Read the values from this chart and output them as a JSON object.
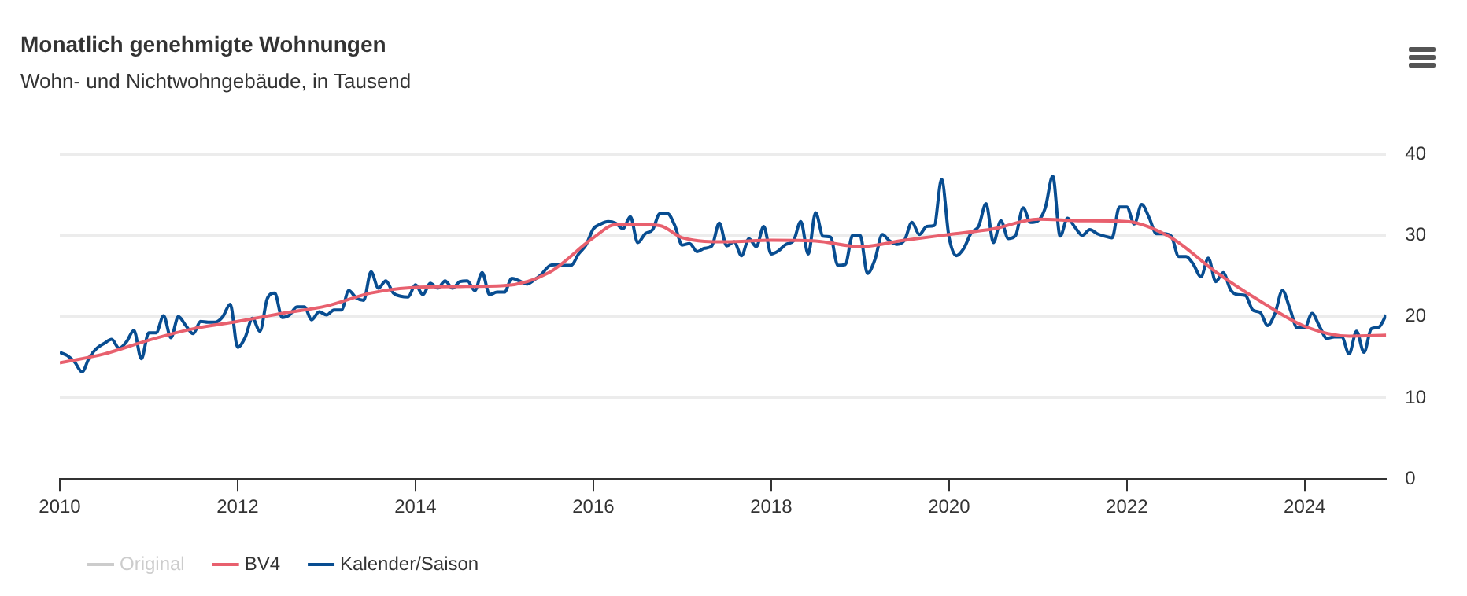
{
  "chart_data": {
    "type": "line",
    "title": "Monatlich genehmigte Wohnungen",
    "subtitle": "Wohn- und Nichtwohngebäude, in Tausend",
    "x": [
      "2010-01",
      "2010-02",
      "2010-03",
      "2010-04",
      "2010-05",
      "2010-06",
      "2010-07",
      "2010-08",
      "2010-09",
      "2010-10",
      "2010-11",
      "2010-12",
      "2011-01",
      "2011-02",
      "2011-03",
      "2011-04",
      "2011-05",
      "2011-06",
      "2011-07",
      "2011-08",
      "2011-09",
      "2011-10",
      "2011-11",
      "2011-12",
      "2012-01",
      "2012-02",
      "2012-03",
      "2012-04",
      "2012-05",
      "2012-06",
      "2012-07",
      "2012-08",
      "2012-09",
      "2012-10",
      "2012-11",
      "2012-12",
      "2013-01",
      "2013-02",
      "2013-03",
      "2013-04",
      "2013-05",
      "2013-06",
      "2013-07",
      "2013-08",
      "2013-09",
      "2013-10",
      "2013-11",
      "2013-12",
      "2014-01",
      "2014-02",
      "2014-03",
      "2014-04",
      "2014-05",
      "2014-06",
      "2014-07",
      "2014-08",
      "2014-09",
      "2014-10",
      "2014-11",
      "2014-12",
      "2015-01",
      "2015-02",
      "2015-03",
      "2015-04",
      "2015-05",
      "2015-06",
      "2015-07",
      "2015-08",
      "2015-09",
      "2015-10",
      "2015-11",
      "2015-12",
      "2016-01",
      "2016-02",
      "2016-03",
      "2016-04",
      "2016-05",
      "2016-06",
      "2016-07",
      "2016-08",
      "2016-09",
      "2016-10",
      "2016-11",
      "2016-12",
      "2017-01",
      "2017-02",
      "2017-03",
      "2017-04",
      "2017-05",
      "2017-06",
      "2017-07",
      "2017-08",
      "2017-09",
      "2017-10",
      "2017-11",
      "2017-12",
      "2018-01",
      "2018-02",
      "2018-03",
      "2018-04",
      "2018-05",
      "2018-06",
      "2018-07",
      "2018-08",
      "2018-09",
      "2018-10",
      "2018-11",
      "2018-12",
      "2019-01",
      "2019-02",
      "2019-03",
      "2019-04",
      "2019-05",
      "2019-06",
      "2019-07",
      "2019-08",
      "2019-09",
      "2019-10",
      "2019-11",
      "2019-12",
      "2020-01",
      "2020-02",
      "2020-03",
      "2020-04",
      "2020-05",
      "2020-06",
      "2020-07",
      "2020-08",
      "2020-09",
      "2020-10",
      "2020-11",
      "2020-12",
      "2021-01",
      "2021-02",
      "2021-03",
      "2021-04",
      "2021-05",
      "2021-06",
      "2021-07",
      "2021-08",
      "2021-09",
      "2021-10",
      "2021-11",
      "2021-12",
      "2022-01",
      "2022-02",
      "2022-03",
      "2022-04",
      "2022-05",
      "2022-06",
      "2022-07",
      "2022-08",
      "2022-09",
      "2022-10",
      "2022-11",
      "2022-12",
      "2023-01",
      "2023-02",
      "2023-03",
      "2023-04",
      "2023-05",
      "2023-06",
      "2023-07",
      "2023-08",
      "2023-09",
      "2023-10",
      "2023-11",
      "2023-12",
      "2024-01",
      "2024-02",
      "2024-03",
      "2024-04",
      "2024-05",
      "2024-06",
      "2024-07",
      "2024-08",
      "2024-09",
      "2024-10",
      "2024-11",
      "2024-12"
    ],
    "series": [
      {
        "name": "Original",
        "color": "#cccccc",
        "values": [
          null,
          null,
          null,
          null,
          null,
          null,
          null,
          null,
          null,
          null,
          null,
          null,
          null,
          null,
          null,
          null,
          null,
          null,
          null,
          null,
          null,
          null,
          null,
          null,
          null,
          null,
          null,
          null,
          null,
          null,
          null,
          null,
          null,
          null,
          null,
          null,
          null,
          null,
          null,
          null,
          null,
          null,
          null,
          null,
          null,
          null,
          null,
          null,
          null,
          null,
          null,
          null,
          null,
          null,
          null,
          null,
          null,
          null,
          null,
          null,
          null,
          null,
          null,
          null,
          null,
          null,
          null,
          null,
          null,
          null,
          null,
          null,
          null,
          null,
          null,
          null,
          null,
          null,
          null,
          null,
          null,
          null,
          null,
          null,
          null,
          null,
          null,
          null,
          null,
          null,
          null,
          null,
          null,
          null,
          null,
          null,
          null,
          null,
          null,
          null,
          null,
          null,
          null,
          null,
          null,
          null,
          null,
          null,
          null,
          null,
          null,
          null,
          null,
          null,
          null,
          null,
          null,
          null,
          null,
          null,
          null,
          null,
          null,
          null,
          null,
          null,
          null,
          null,
          null,
          null,
          null,
          null,
          null,
          null,
          null,
          null,
          null,
          null,
          null,
          null,
          null,
          null,
          null,
          null,
          null,
          null,
          null,
          null,
          null,
          null,
          null,
          null,
          null,
          null,
          null,
          null,
          null,
          null,
          null,
          null,
          null,
          null,
          null,
          null,
          null,
          null,
          null,
          null,
          null,
          null,
          null,
          null,
          null,
          null,
          null,
          null,
          null,
          null,
          null,
          null
        ]
      },
      {
        "name": "BV4",
        "color": "#e8606e",
        "x": [
          "2010-01",
          "2010-07",
          "2011-01",
          "2011-07",
          "2012-01",
          "2012-07",
          "2013-01",
          "2013-07",
          "2014-01",
          "2014-07",
          "2015-01",
          "2015-07",
          "2016-01",
          "2016-04",
          "2016-07",
          "2016-10",
          "2017-01",
          "2017-07",
          "2018-01",
          "2018-07",
          "2019-01",
          "2019-07",
          "2020-01",
          "2020-07",
          "2021-01",
          "2021-07",
          "2022-01",
          "2022-07",
          "2023-01",
          "2023-07",
          "2024-01",
          "2024-07",
          "2024-12"
        ],
        "values": [
          14.3,
          15.4,
          17.1,
          18.5,
          19.4,
          20.4,
          21.3,
          22.9,
          23.6,
          23.7,
          23.8,
          25.4,
          29.7,
          31.3,
          31.3,
          31.2,
          29.7,
          29.2,
          29.4,
          29.3,
          28.6,
          29.4,
          30.1,
          30.8,
          32.0,
          31.8,
          31.7,
          29.7,
          25.5,
          21.9,
          18.8,
          17.6,
          17.7
        ]
      },
      {
        "name": "Kalender/Saison",
        "color": "#084d91",
        "values": [
          15.6,
          15.2,
          14.4,
          13.2,
          15.0,
          16.1,
          16.7,
          17.2,
          16.1,
          16.9,
          18.3,
          14.8,
          18.0,
          18.0,
          20.1,
          17.4,
          20.0,
          18.9,
          17.9,
          19.4,
          19.3,
          19.3,
          20.0,
          21.5,
          16.2,
          17.4,
          19.8,
          18.2,
          22.2,
          22.9,
          19.9,
          20.2,
          21.2,
          21.2,
          19.6,
          20.6,
          20.2,
          20.8,
          20.8,
          23.2,
          22.3,
          22.0,
          25.5,
          23.5,
          24.4,
          22.9,
          22.5,
          22.4,
          23.9,
          22.7,
          24.1,
          23.5,
          24.4,
          23.5,
          24.3,
          24.4,
          23.2,
          25.4,
          22.7,
          23.0,
          23.0,
          24.7,
          24.4,
          24.0,
          24.5,
          25.2,
          26.2,
          26.4,
          26.3,
          26.3,
          27.7,
          28.8,
          30.8,
          31.4,
          31.7,
          31.5,
          30.8,
          32.3,
          29.1,
          30.2,
          30.7,
          32.7,
          32.7,
          31.2,
          28.8,
          29.0,
          28.0,
          28.4,
          28.7,
          31.5,
          28.7,
          29.2,
          27.5,
          29.6,
          28.6,
          31.1,
          27.7,
          28.1,
          28.9,
          29.3,
          31.7,
          27.7,
          32.8,
          29.9,
          29.8,
          26.3,
          26.4,
          30.0,
          30.0,
          25.3,
          27.0,
          30.1,
          29.3,
          28.9,
          29.4,
          31.6,
          30.1,
          31.1,
          31.2,
          36.9,
          29.8,
          27.5,
          28.4,
          30.3,
          31.1,
          33.9,
          29.1,
          31.8,
          29.6,
          30.0,
          33.4,
          31.6,
          31.8,
          33.4,
          37.3,
          29.9,
          32.1,
          31.0,
          30.0,
          30.7,
          30.2,
          29.9,
          29.7,
          33.5,
          33.5,
          31.4,
          33.8,
          32.2,
          30.2,
          30.2,
          29.9,
          27.4,
          27.4,
          26.4,
          24.9,
          27.2,
          24.3,
          25.4,
          23.3,
          22.7,
          22.6,
          20.8,
          20.5,
          18.9,
          20.4,
          23.2,
          21.0,
          18.6,
          18.6,
          20.4,
          18.8,
          17.3,
          17.5,
          17.5,
          15.4,
          18.2,
          15.6,
          18.5,
          18.7,
          20.2
        ]
      }
    ],
    "xlim": [
      "2010-01",
      "2024-12"
    ],
    "xticks": [
      "2010",
      "2012",
      "2014",
      "2016",
      "2018",
      "2020",
      "2022",
      "2024"
    ],
    "ylim": [
      0,
      40
    ],
    "yticks": [
      0,
      10,
      20,
      30,
      40
    ],
    "grid": "y",
    "legend": "bottom left",
    "marker": "none",
    "line_style": "solid"
  }
}
